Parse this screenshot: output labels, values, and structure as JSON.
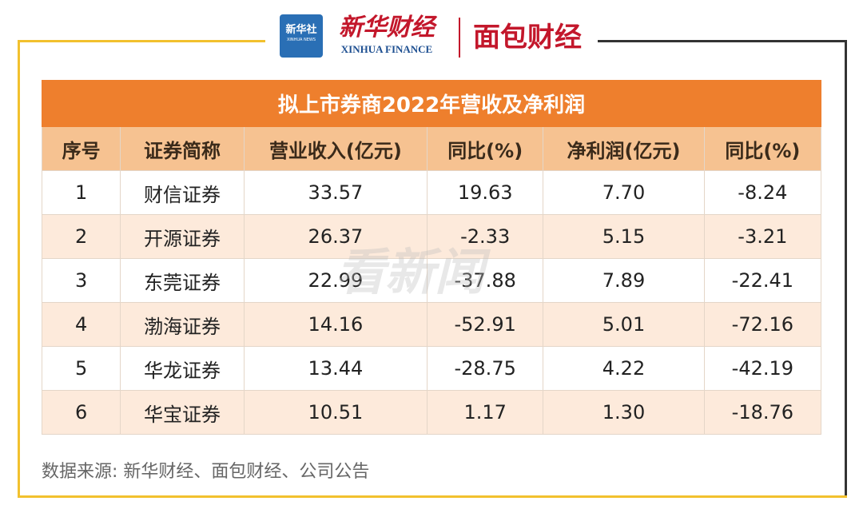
{
  "header": {
    "logo1_title": "新华社",
    "logo1_subtitle": "XINHUA NEWS",
    "logo2_title": "新华财经",
    "logo2_subtitle": "XINHUA FINANCE",
    "logo3_title": "面包财经"
  },
  "watermark": "看新闻",
  "table": {
    "title": "拟上市券商2022年营收及净利润",
    "columns": [
      "序号",
      "证券简称",
      "营业收入(亿元)",
      "同比(%)",
      "净利润(亿元)",
      "同比(%)"
    ],
    "rows": [
      [
        "1",
        "财信证券",
        "33.57",
        "19.63",
        "7.70",
        "-8.24"
      ],
      [
        "2",
        "开源证券",
        "26.37",
        "-2.33",
        "5.15",
        "-3.21"
      ],
      [
        "3",
        "东莞证券",
        "22.99",
        "-37.88",
        "7.89",
        "-22.41"
      ],
      [
        "4",
        "渤海证券",
        "14.16",
        "-52.91",
        "5.01",
        "-72.16"
      ],
      [
        "5",
        "华龙证券",
        "13.44",
        "-28.75",
        "4.22",
        "-42.19"
      ],
      [
        "6",
        "华宝证券",
        "10.51",
        "1.17",
        "1.30",
        "-18.76"
      ]
    ]
  },
  "source": "数据来源: 新华财经、面包财经、公司公告"
}
